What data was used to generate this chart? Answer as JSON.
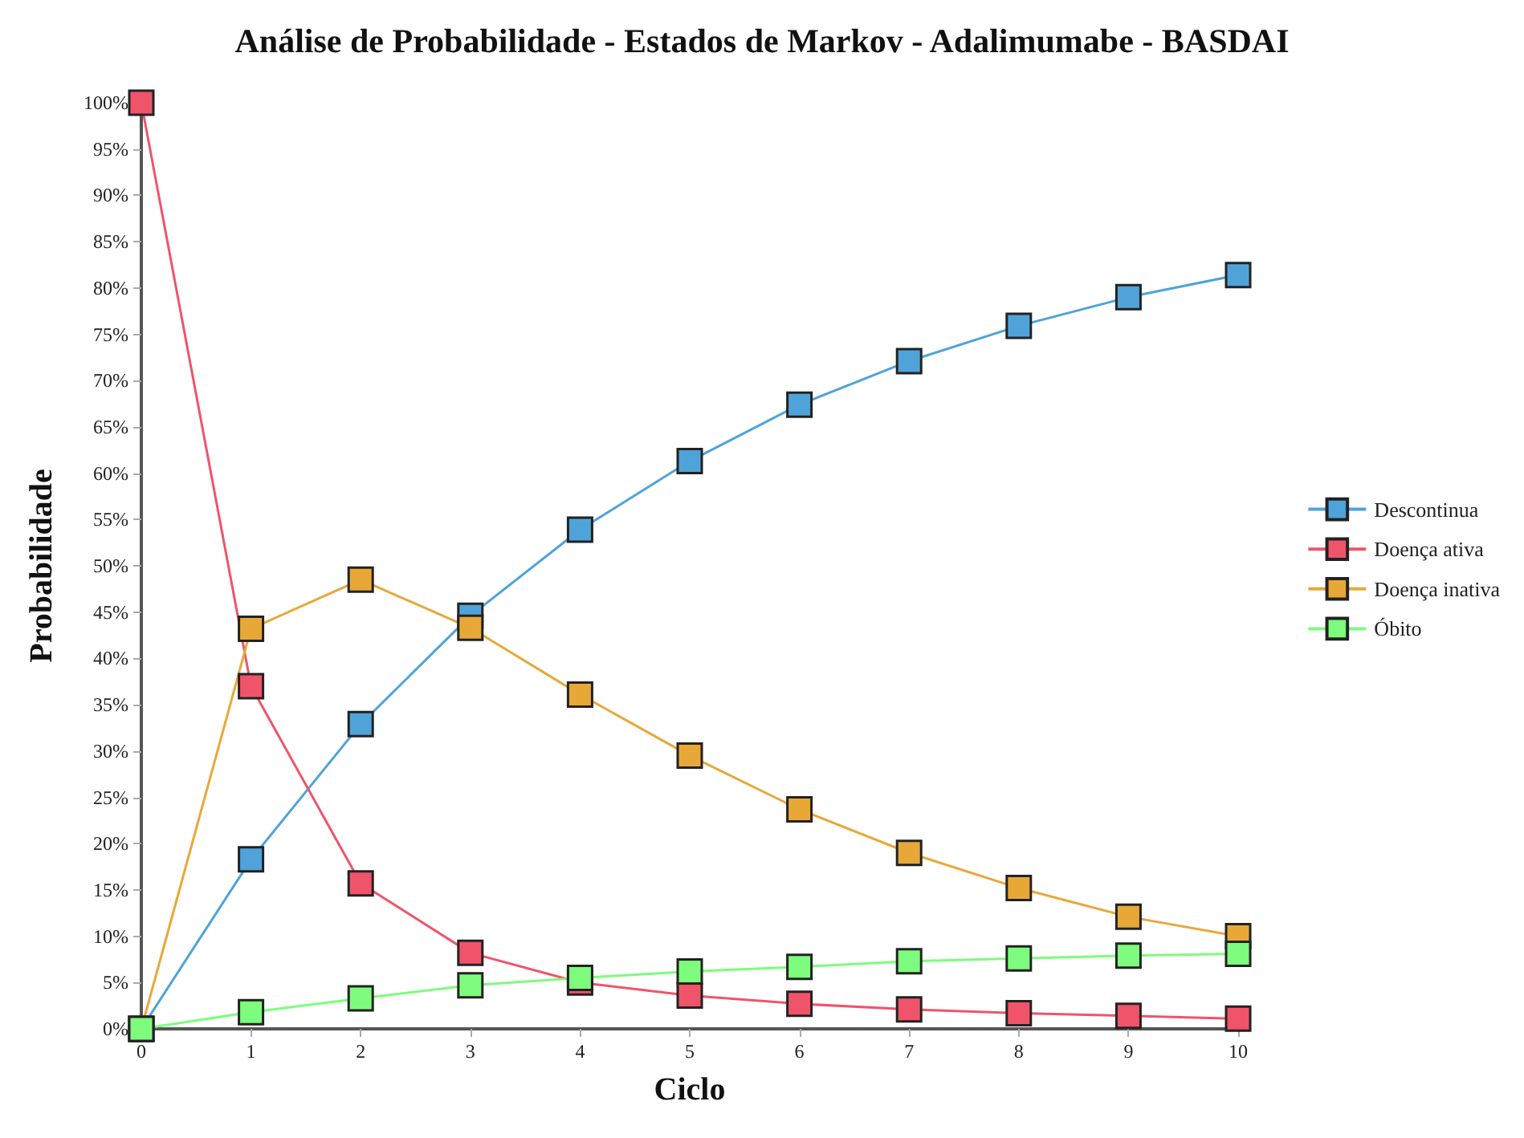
{
  "chart_data": {
    "type": "line",
    "title": "Análise de Probabilidade - Estados de Markov - Adalimumabe - BASDAI",
    "xlabel": "Ciclo",
    "ylabel": "Probabilidade",
    "x": [
      0,
      1,
      2,
      3,
      4,
      5,
      6,
      7,
      8,
      9,
      10
    ],
    "series": [
      {
        "name": "Descontinua",
        "color": "#4fa3d9",
        "values": [
          0,
          18.3,
          32.9,
          44.6,
          53.9,
          61.3,
          67.4,
          72.1,
          75.9,
          79.0,
          81.4
        ]
      },
      {
        "name": "Doença ativa",
        "color": "#f0546a",
        "values": [
          100,
          37.0,
          15.7,
          8.2,
          5.0,
          3.6,
          2.7,
          2.1,
          1.7,
          1.4,
          1.1
        ]
      },
      {
        "name": "Doença inativa",
        "color": "#e8a838",
        "values": [
          0,
          43.2,
          48.5,
          43.3,
          36.1,
          29.5,
          23.7,
          19.0,
          15.2,
          12.1,
          10.0
        ]
      },
      {
        "name": "Óbito",
        "color": "#7dfc7d",
        "values": [
          0,
          1.8,
          3.3,
          4.7,
          5.5,
          6.2,
          6.7,
          7.3,
          7.6,
          7.9,
          8.1
        ]
      }
    ],
    "xlim": [
      0,
      10
    ],
    "xticks": [
      0,
      1,
      2,
      3,
      4,
      5,
      6,
      7,
      8,
      9,
      10
    ],
    "ylim": [
      0,
      100
    ],
    "yticks": [
      {
        "value": 0,
        "label": "0%"
      },
      {
        "value": 5,
        "label": "5%"
      },
      {
        "value": 10,
        "label": "10%"
      },
      {
        "value": 15,
        "label": "15%"
      },
      {
        "value": 20,
        "label": "20%"
      },
      {
        "value": 25,
        "label": "25%"
      },
      {
        "value": 30,
        "label": "30%"
      },
      {
        "value": 35,
        "label": "35%"
      },
      {
        "value": 40,
        "label": "40%"
      },
      {
        "value": 45,
        "label": "45%"
      },
      {
        "value": 50,
        "label": "50%"
      },
      {
        "value": 55,
        "label": "55%"
      },
      {
        "value": 60,
        "label": "60%"
      },
      {
        "value": 65,
        "label": "65%"
      },
      {
        "value": 70,
        "label": "70%"
      },
      {
        "value": 75,
        "label": "75%"
      },
      {
        "value": 80,
        "label": "80%"
      },
      {
        "value": 85,
        "label": "85%"
      },
      {
        "value": 90,
        "label": "90%"
      },
      {
        "value": 95,
        "label": "95%"
      },
      {
        "value": 100,
        "label": "100%"
      }
    ],
    "grid": false,
    "legend": "right",
    "marker": "square",
    "line_style": "solid"
  }
}
